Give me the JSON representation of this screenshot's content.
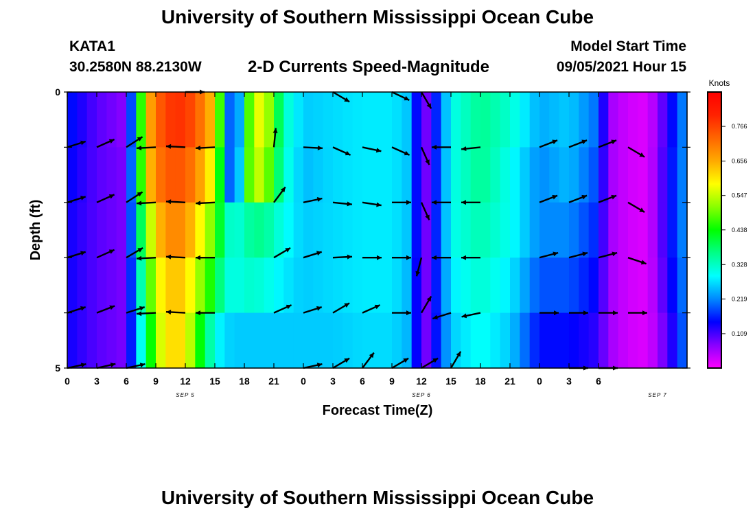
{
  "header": {
    "title": "University of Southern Mississippi Ocean Cube",
    "station_id": "KATA1",
    "station_coords": "30.2580N  88.2130W",
    "plot_title": "2-D Currents Speed-Magnitude",
    "model_start_label": "Model Start Time",
    "model_start_value": "09/05/2021 Hour 15"
  },
  "footer": {
    "title": "University of Southern Mississippi Ocean Cube"
  },
  "chart_data": {
    "type": "heatmap",
    "xlabel": "Forecast Time(Z)",
    "ylabel": "Depth (ft)",
    "colorbar_label": "Knots",
    "x_tick_labels": [
      "0",
      "3",
      "6",
      "9",
      "12",
      "15",
      "18",
      "21",
      "0",
      "3",
      "6",
      "9",
      "12",
      "15",
      "18",
      "21",
      "0",
      "3",
      "6"
    ],
    "date_labels": [
      "SEP 5",
      "SEP 6",
      "SEP 7"
    ],
    "date_label_hours": [
      12,
      36,
      60
    ],
    "xlim_hours": [
      0,
      63
    ],
    "ylim": [
      0,
      5
    ],
    "y_tick_labels": [
      "0",
      "5"
    ],
    "depth_rows": [
      0,
      1,
      2,
      3,
      4,
      5
    ],
    "vmin": 0.0,
    "vmax": 0.875,
    "colorbar_ticks": [
      0.766,
      0.656,
      0.547,
      0.438,
      0.328,
      0.219,
      0.109
    ],
    "colormap": [
      "#ff00ff",
      "#8800ff",
      "#0000ff",
      "#0088ff",
      "#00ffff",
      "#00ff88",
      "#00ff00",
      "#88ff00",
      "#ffff00",
      "#ffaa00",
      "#ff6600",
      "#ff2200",
      "#ff0000"
    ],
    "speed_keyframes": {
      "hours": [
        0,
        3,
        6,
        7,
        8,
        9,
        10,
        11,
        12,
        13,
        15,
        16,
        17,
        18,
        19,
        20,
        22,
        24,
        27,
        30,
        33,
        35,
        36,
        37,
        39,
        42,
        45,
        48,
        51,
        54,
        55,
        57,
        59,
        61,
        63
      ],
      "rows": [
        [
          0.16,
          0.1,
          0.07,
          0.3,
          0.62,
          0.72,
          0.77,
          0.79,
          0.78,
          0.75,
          0.62,
          0.32,
          0.08,
          0.4,
          0.56,
          0.58,
          0.33,
          0.26,
          0.27,
          0.28,
          0.28,
          0.25,
          0.05,
          0.12,
          0.3,
          0.36,
          0.32,
          0.24,
          0.26,
          0.2,
          0.06,
          0.03,
          0.02,
          0.12,
          0.24
        ],
        [
          0.15,
          0.1,
          0.08,
          0.32,
          0.6,
          0.7,
          0.74,
          0.75,
          0.74,
          0.7,
          0.56,
          0.3,
          0.1,
          0.42,
          0.55,
          0.54,
          0.32,
          0.25,
          0.27,
          0.28,
          0.28,
          0.25,
          0.05,
          0.12,
          0.3,
          0.36,
          0.3,
          0.22,
          0.25,
          0.18,
          0.06,
          0.03,
          0.02,
          0.13,
          0.24
        ],
        [
          0.14,
          0.1,
          0.08,
          0.3,
          0.48,
          0.62,
          0.68,
          0.7,
          0.68,
          0.62,
          0.48,
          0.35,
          0.3,
          0.34,
          0.36,
          0.36,
          0.3,
          0.26,
          0.27,
          0.28,
          0.28,
          0.25,
          0.05,
          0.12,
          0.3,
          0.34,
          0.3,
          0.22,
          0.22,
          0.16,
          0.06,
          0.03,
          0.02,
          0.13,
          0.24
        ],
        [
          0.14,
          0.1,
          0.08,
          0.26,
          0.42,
          0.56,
          0.62,
          0.64,
          0.62,
          0.55,
          0.42,
          0.32,
          0.3,
          0.32,
          0.32,
          0.31,
          0.28,
          0.26,
          0.27,
          0.28,
          0.28,
          0.24,
          0.05,
          0.12,
          0.28,
          0.32,
          0.28,
          0.19,
          0.19,
          0.14,
          0.06,
          0.03,
          0.02,
          0.12,
          0.23
        ],
        [
          0.14,
          0.1,
          0.08,
          0.24,
          0.36,
          0.52,
          0.6,
          0.62,
          0.6,
          0.48,
          0.3,
          0.27,
          0.26,
          0.26,
          0.26,
          0.26,
          0.26,
          0.26,
          0.26,
          0.27,
          0.27,
          0.24,
          0.05,
          0.12,
          0.26,
          0.3,
          0.26,
          0.15,
          0.15,
          0.12,
          0.06,
          0.03,
          0.02,
          0.1,
          0.22
        ],
        [
          0.12,
          0.1,
          0.09,
          0.2,
          0.28,
          0.44,
          0.54,
          0.56,
          0.54,
          0.42,
          0.26,
          0.22,
          0.2,
          0.24,
          0.24,
          0.24,
          0.22,
          0.22,
          0.26,
          0.26,
          0.27,
          0.22,
          0.05,
          0.12,
          0.22,
          0.26,
          0.22,
          0.12,
          0.12,
          0.1,
          0.06,
          0.03,
          0.02,
          0.08,
          0.2
        ]
      ]
    },
    "current_vectors": [
      {
        "depth": 0,
        "hours": [
          12,
          27,
          33,
          36
        ],
        "dx": [
          1.0,
          0.85,
          0.85,
          0.5
        ],
        "dy": [
          0.0,
          -0.5,
          -0.4,
          -0.85
        ]
      },
      {
        "depth": 1,
        "hours": [
          0,
          3,
          6,
          9,
          12,
          15,
          21,
          24,
          27,
          30,
          33,
          36,
          39,
          42,
          48,
          51,
          54,
          57
        ],
        "dx": [
          0.95,
          0.9,
          0.85,
          -0.97,
          -0.97,
          -0.97,
          0.1,
          0.97,
          0.9,
          0.95,
          0.9,
          0.4,
          -0.97,
          -0.97,
          0.9,
          0.9,
          0.9,
          0.85
        ],
        "dy": [
          0.3,
          0.4,
          0.55,
          -0.05,
          0.05,
          -0.05,
          0.99,
          -0.05,
          -0.4,
          -0.2,
          -0.4,
          -0.9,
          0.0,
          -0.1,
          0.35,
          0.35,
          0.35,
          -0.5
        ]
      },
      {
        "depth": 2,
        "hours": [
          0,
          3,
          6,
          9,
          12,
          15,
          21,
          24,
          27,
          30,
          33,
          36,
          39,
          42,
          48,
          51,
          54,
          57
        ],
        "dx": [
          0.95,
          0.9,
          0.85,
          -0.97,
          -0.97,
          -0.97,
          0.6,
          0.95,
          0.97,
          0.97,
          0.97,
          0.4,
          -0.97,
          -0.97,
          0.9,
          0.9,
          0.9,
          0.85
        ],
        "dy": [
          0.3,
          0.4,
          0.55,
          -0.05,
          0.05,
          -0.05,
          0.8,
          0.2,
          -0.1,
          -0.15,
          0.0,
          -0.9,
          0.0,
          0.0,
          0.35,
          0.35,
          0.35,
          -0.5
        ]
      },
      {
        "depth": 3,
        "hours": [
          0,
          3,
          6,
          9,
          12,
          15,
          21,
          24,
          27,
          30,
          33,
          36,
          39,
          42,
          48,
          51,
          54,
          57
        ],
        "dx": [
          0.95,
          0.9,
          0.85,
          -0.97,
          -0.97,
          -0.97,
          0.85,
          0.95,
          0.97,
          0.97,
          0.97,
          -0.25,
          -0.97,
          -0.97,
          0.95,
          0.95,
          0.95,
          0.9
        ],
        "dy": [
          0.3,
          0.4,
          0.5,
          -0.05,
          0.05,
          0.0,
          0.5,
          0.3,
          0.05,
          0.0,
          0.0,
          -0.97,
          0.0,
          0.0,
          0.25,
          0.25,
          0.25,
          -0.3
        ]
      },
      {
        "depth": 4,
        "hours": [
          0,
          3,
          6,
          9,
          12,
          15,
          21,
          24,
          27,
          30,
          33,
          36,
          39,
          42,
          48,
          51,
          54,
          57
        ],
        "dx": [
          0.95,
          0.9,
          0.95,
          -0.97,
          -0.97,
          -0.97,
          0.9,
          0.95,
          0.85,
          0.9,
          0.97,
          0.5,
          -0.95,
          -0.97,
          0.97,
          0.97,
          0.97,
          0.97
        ],
        "dy": [
          0.3,
          0.35,
          0.3,
          -0.05,
          0.05,
          0.0,
          0.4,
          0.3,
          0.5,
          0.4,
          0.0,
          0.85,
          -0.3,
          -0.2,
          0.0,
          0.0,
          0.0,
          0.0
        ]
      },
      {
        "depth": 5,
        "hours": [
          0,
          3,
          6,
          24,
          27,
          30,
          33,
          36,
          39,
          51,
          54
        ],
        "dx": [
          0.95,
          0.9,
          0.95,
          0.95,
          0.85,
          0.6,
          0.85,
          0.85,
          0.5,
          0.95,
          0.95
        ],
        "dy": [
          0.2,
          0.2,
          0.2,
          0.2,
          0.5,
          0.8,
          0.5,
          0.5,
          0.85,
          0.0,
          0.0
        ]
      }
    ]
  }
}
